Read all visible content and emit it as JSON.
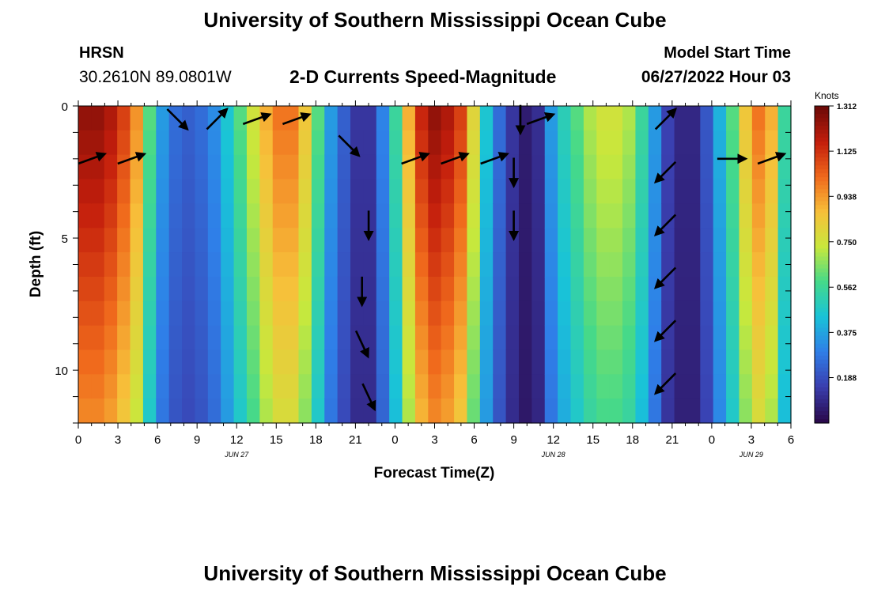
{
  "header": {
    "title": "University of Southern Mississippi Ocean Cube",
    "station": "HRSN",
    "coords": "30.2610N  89.0801W",
    "product": "2-D Currents Speed-Magnitude",
    "model_label": "Model Start Time",
    "model_time": "06/27/2022 Hour 03"
  },
  "footer": {
    "title": "University of Southern Mississippi Ocean Cube"
  },
  "colors": {
    "scale": [
      "#2a0a4e",
      "#3a3fb0",
      "#2f7fe8",
      "#19c3d8",
      "#45d98a",
      "#c8e83c",
      "#f7c03a",
      "#f06a1c",
      "#c41e0c",
      "#6e0b08"
    ]
  },
  "chart_data": {
    "type": "heatmap",
    "title": "2-D Currents Speed-Magnitude",
    "xlabel": "Forecast Time(Z)",
    "ylabel": "Depth (ft)",
    "x_hours": [
      0,
      1,
      2,
      3,
      4,
      5,
      6,
      7,
      8,
      9,
      10,
      11,
      12,
      13,
      14,
      15,
      16,
      17,
      18,
      19,
      20,
      21,
      22,
      23,
      24,
      25,
      26,
      27,
      28,
      29,
      30,
      31,
      32,
      33,
      34,
      35,
      36,
      37,
      38,
      39,
      40,
      41,
      42,
      43,
      44,
      45,
      46,
      47,
      48,
      49,
      50,
      51,
      52,
      53,
      54
    ],
    "xlim": [
      0,
      54
    ],
    "x_tick_labels": [
      "0",
      "3",
      "6",
      "9",
      "12",
      "15",
      "18",
      "21",
      "0",
      "3",
      "6",
      "9",
      "12",
      "15",
      "18",
      "21",
      "0",
      "3",
      "6"
    ],
    "x_tick_hours": [
      0,
      3,
      6,
      9,
      12,
      15,
      18,
      21,
      24,
      27,
      30,
      33,
      36,
      39,
      42,
      45,
      48,
      51,
      54
    ],
    "date_labels": [
      {
        "text": "JUN 27",
        "hour": 12
      },
      {
        "text": "JUN 28",
        "hour": 36
      },
      {
        "text": "JUN 29",
        "hour": 51
      }
    ],
    "ylim": [
      0,
      12
    ],
    "y_tick_labels": [
      "0",
      "5",
      "10"
    ],
    "y_tick_values": [
      0,
      5,
      10
    ],
    "depths_ft": [
      0,
      2,
      4,
      6,
      8,
      10,
      12
    ],
    "colorbar": {
      "label": "Knots",
      "min": 0.0,
      "max": 1.312,
      "ticks": [
        "1.312",
        "1.125",
        "0.938",
        "0.750",
        "0.562",
        "0.375",
        "0.188"
      ],
      "tick_values": [
        1.312,
        1.125,
        0.938,
        0.75,
        0.562,
        0.375,
        0.188
      ]
    },
    "speed_profile_knots": [
      1.25,
      1.25,
      1.2,
      1.1,
      0.95,
      0.6,
      0.35,
      0.25,
      0.22,
      0.25,
      0.32,
      0.45,
      0.6,
      0.75,
      0.9,
      1.0,
      1.0,
      0.85,
      0.6,
      0.35,
      0.22,
      0.12,
      0.12,
      0.3,
      0.55,
      0.9,
      1.15,
      1.25,
      1.2,
      1.1,
      0.8,
      0.45,
      0.25,
      0.12,
      0.05,
      0.1,
      0.35,
      0.5,
      0.6,
      0.7,
      0.75,
      0.75,
      0.7,
      0.55,
      0.35,
      0.15,
      0.08,
      0.08,
      0.2,
      0.4,
      0.6,
      0.85,
      1.0,
      0.9,
      0.55
    ],
    "arrows": [
      {
        "hour": 1.0,
        "depth": 2.0,
        "dir": "ENE"
      },
      {
        "hour": 4.0,
        "depth": 2.0,
        "dir": "ENE"
      },
      {
        "hour": 7.5,
        "depth": 0.5,
        "dir": "SE"
      },
      {
        "hour": 10.5,
        "depth": 0.5,
        "dir": "NE"
      },
      {
        "hour": 13.5,
        "depth": 0.5,
        "dir": "ENE"
      },
      {
        "hour": 16.5,
        "depth": 0.5,
        "dir": "ENE"
      },
      {
        "hour": 20.5,
        "depth": 1.5,
        "dir": "SE"
      },
      {
        "hour": 22.0,
        "depth": 4.5,
        "dir": "S"
      },
      {
        "hour": 21.5,
        "depth": 7.0,
        "dir": "S"
      },
      {
        "hour": 21.5,
        "depth": 9.0,
        "dir": "SSE"
      },
      {
        "hour": 22.0,
        "depth": 11.0,
        "dir": "SSE"
      },
      {
        "hour": 25.5,
        "depth": 2.0,
        "dir": "ENE"
      },
      {
        "hour": 28.5,
        "depth": 2.0,
        "dir": "ENE"
      },
      {
        "hour": 31.5,
        "depth": 2.0,
        "dir": "ENE"
      },
      {
        "hour": 33.5,
        "depth": 0.5,
        "dir": "S"
      },
      {
        "hour": 33.0,
        "depth": 2.5,
        "dir": "S"
      },
      {
        "hour": 33.0,
        "depth": 4.5,
        "dir": "S"
      },
      {
        "hour": 35.0,
        "depth": 0.5,
        "dir": "ENE"
      },
      {
        "hour": 44.5,
        "depth": 0.5,
        "dir": "NE"
      },
      {
        "hour": 44.5,
        "depth": 2.5,
        "dir": "SW"
      },
      {
        "hour": 44.5,
        "depth": 4.5,
        "dir": "SW"
      },
      {
        "hour": 44.5,
        "depth": 6.5,
        "dir": "SW"
      },
      {
        "hour": 44.5,
        "depth": 8.5,
        "dir": "SW"
      },
      {
        "hour": 44.5,
        "depth": 10.5,
        "dir": "SW"
      },
      {
        "hour": 49.5,
        "depth": 2.0,
        "dir": "E"
      },
      {
        "hour": 52.5,
        "depth": 2.0,
        "dir": "ENE"
      }
    ]
  }
}
